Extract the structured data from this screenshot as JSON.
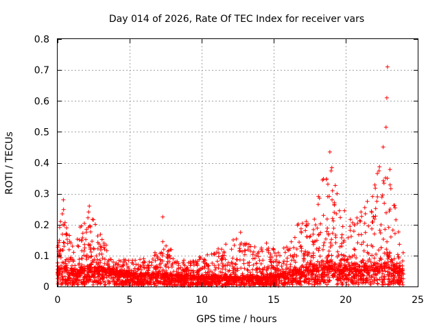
{
  "chart_data": {
    "type": "scatter",
    "title": "Day 014 of 2026, Rate Of TEC Index for receiver vars",
    "xlabel": "GPS time / hours",
    "ylabel": "ROTI / TECUs",
    "xlim": [
      0,
      25
    ],
    "ylim": [
      0,
      0.8
    ],
    "xticks": [
      0,
      5,
      10,
      15,
      20,
      25
    ],
    "xtick_labels": [
      "0",
      "5",
      "10",
      "15",
      "20",
      "25"
    ],
    "yticks": [
      0,
      0.1,
      0.2,
      0.3,
      0.4,
      0.5,
      0.6,
      0.7,
      0.8
    ],
    "ytick_labels": [
      "0",
      "0.1",
      "0.2",
      "0.3",
      "0.4",
      "0.5",
      "0.6",
      "0.7",
      "0.8"
    ],
    "grid": true,
    "marker": "+",
    "series_color": "#ff0000",
    "x_range_of_points": [
      0,
      24
    ],
    "envelope": [
      {
        "t": 0.0,
        "base": 0.04,
        "peak": 0.16
      },
      {
        "t": 0.4,
        "base": 0.05,
        "peak": 0.27
      },
      {
        "t": 1.0,
        "base": 0.04,
        "peak": 0.15
      },
      {
        "t": 2.2,
        "base": 0.05,
        "peak": 0.25
      },
      {
        "t": 3.0,
        "base": 0.05,
        "peak": 0.17
      },
      {
        "t": 4.0,
        "base": 0.04,
        "peak": 0.09
      },
      {
        "t": 6.0,
        "base": 0.03,
        "peak": 0.09
      },
      {
        "t": 7.3,
        "base": 0.03,
        "peak": 0.14
      },
      {
        "t": 9.0,
        "base": 0.025,
        "peak": 0.08
      },
      {
        "t": 11.0,
        "base": 0.025,
        "peak": 0.12
      },
      {
        "t": 12.7,
        "base": 0.025,
        "peak": 0.17
      },
      {
        "t": 14.5,
        "base": 0.025,
        "peak": 0.13
      },
      {
        "t": 15.5,
        "base": 0.03,
        "peak": 0.12
      },
      {
        "t": 16.5,
        "base": 0.04,
        "peak": 0.2
      },
      {
        "t": 17.5,
        "base": 0.05,
        "peak": 0.22
      },
      {
        "t": 18.9,
        "base": 0.06,
        "peak": 0.43
      },
      {
        "t": 19.6,
        "base": 0.05,
        "peak": 0.26
      },
      {
        "t": 20.5,
        "base": 0.05,
        "peak": 0.22
      },
      {
        "t": 21.5,
        "base": 0.05,
        "peak": 0.27
      },
      {
        "t": 22.8,
        "base": 0.06,
        "peak": 0.5
      },
      {
        "t": 23.3,
        "base": 0.05,
        "peak": 0.3
      },
      {
        "t": 24.0,
        "base": 0.04,
        "peak": 0.15
      }
    ],
    "notable_points": [
      {
        "x": 0.2,
        "y": 0.21
      },
      {
        "x": 0.4,
        "y": 0.28
      },
      {
        "x": 2.2,
        "y": 0.26
      },
      {
        "x": 7.3,
        "y": 0.225
      },
      {
        "x": 7.3,
        "y": 0.145
      },
      {
        "x": 12.7,
        "y": 0.175
      },
      {
        "x": 14.5,
        "y": 0.14
      },
      {
        "x": 18.9,
        "y": 0.435
      },
      {
        "x": 19.4,
        "y": 0.3
      },
      {
        "x": 21.5,
        "y": 0.275
      },
      {
        "x": 22.2,
        "y": 0.29
      },
      {
        "x": 22.8,
        "y": 0.515
      },
      {
        "x": 22.85,
        "y": 0.61
      },
      {
        "x": 22.9,
        "y": 0.71
      }
    ]
  }
}
